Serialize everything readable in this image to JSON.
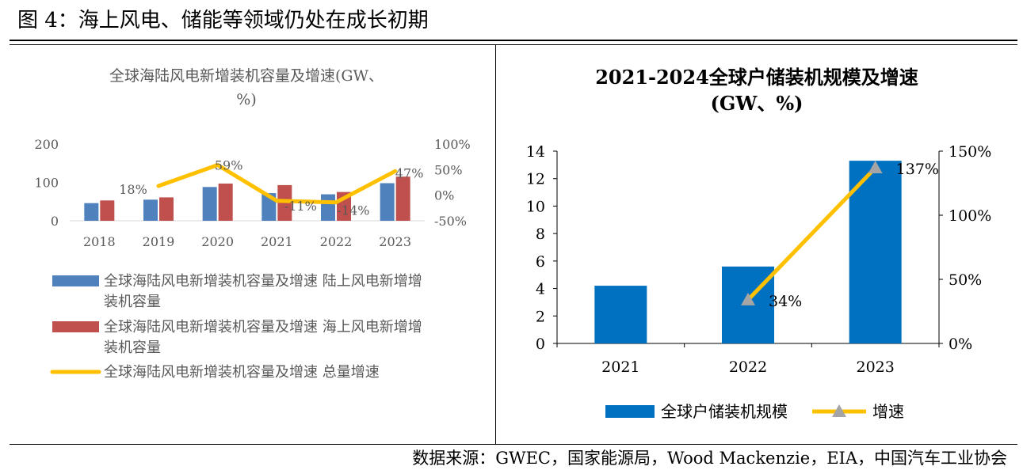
{
  "figure": {
    "title": "图 4：海上风电、储能等领域仍处在成长初期",
    "source": "数据来源：GWEC，国家能源局，Wood Mackenzie，EIA，中国汽车工业协会"
  },
  "colors": {
    "blue_left": "#4F81BD",
    "red_left": "#C0504D",
    "yellow": "#FFC000",
    "blue_right": "#0070C0",
    "grey_marker": "#A5A5A5"
  },
  "chart_data": [
    {
      "type": "bar",
      "title_lines": [
        "全球海陆风电新增装机容量及增速(GW、",
        "%)"
      ],
      "categories": [
        "2018",
        "2019",
        "2020",
        "2021",
        "2022",
        "2023"
      ],
      "ylim": [
        0,
        200
      ],
      "yticks": [
        "0",
        "100",
        "200"
      ],
      "y2lim": [
        -50,
        100
      ],
      "y2ticks": [
        "-50%",
        "0%",
        "50%",
        "100%"
      ],
      "series": [
        {
          "name": "全球海陆风电新增装机容量及增速  陆上风电新增装机容量",
          "kind": "bar",
          "axis": "left",
          "color": "#4F81BD",
          "values": [
            46,
            55,
            88,
            72,
            69,
            98
          ]
        },
        {
          "name": "全球海陆风电新增装机容量及增速  海上风电新增装机容量",
          "kind": "bar",
          "axis": "left",
          "color": "#C0504D",
          "values": [
            53,
            61,
            97,
            93,
            75,
            115
          ]
        },
        {
          "name": "全球海陆风电新增装机容量及增速  总量增速",
          "kind": "line",
          "axis": "right",
          "color": "#FFC000",
          "values": [
            null,
            18,
            59,
            -11,
            -14,
            47
          ],
          "labels": [
            null,
            "18%",
            "59%",
            "-11%",
            "-14%",
            "47%"
          ]
        }
      ],
      "legend_lines": [
        [
          "全球海陆风电新增装机容量及增速  陆上风电新增增",
          "装机容量"
        ],
        [
          "全球海陆风电新增装机容量及增速  海上风电新增增",
          "装机容量"
        ],
        [
          "全球海陆风电新增装机容量及增速  总量增速"
        ]
      ]
    },
    {
      "type": "bar",
      "title_lines": [
        "2021-2024全球户储装机规模及增速",
        "(GW、%)"
      ],
      "categories": [
        "2021",
        "2022",
        "2023"
      ],
      "ylim": [
        0,
        14
      ],
      "yticks": [
        "0",
        "2",
        "4",
        "6",
        "8",
        "10",
        "12",
        "14"
      ],
      "y2lim": [
        0,
        150
      ],
      "y2ticks": [
        "0%",
        "50%",
        "100%",
        "150%"
      ],
      "series": [
        {
          "name": "全球户储装机规模",
          "kind": "bar",
          "axis": "left",
          "color": "#0070C0",
          "values": [
            4.2,
            5.6,
            13.3
          ]
        },
        {
          "name": "增速",
          "kind": "line",
          "axis": "right",
          "color": "#FFC000",
          "marker_color": "#A5A5A5",
          "values": [
            null,
            34,
            137
          ],
          "labels": [
            null,
            "34%",
            "137%"
          ]
        }
      ],
      "legend_labels": [
        "全球户储装机规模",
        "增速"
      ]
    }
  ]
}
